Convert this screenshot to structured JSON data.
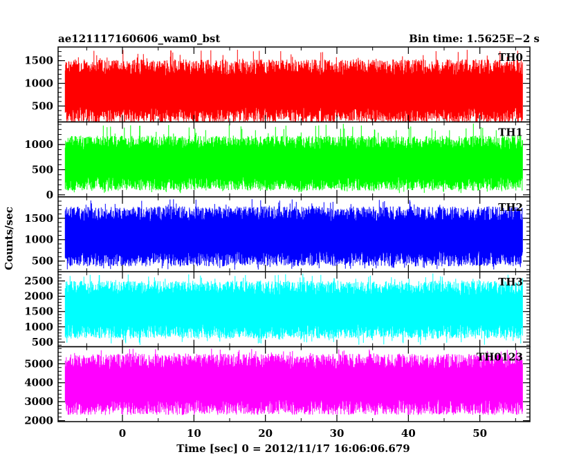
{
  "chart_data": {
    "type": "line",
    "title_left": "ae121117160606_wam0_bst",
    "title_right": "Bin time: 1.5625E−2 s",
    "xlabel": "Time [sec] 0 = 2012/11/17 16:06:06.679",
    "ylabel": "Counts/sec",
    "xlim": [
      -9,
      57
    ],
    "data_x_range": [
      -8,
      56
    ],
    "x_ticks": [
      "0",
      "10",
      "20",
      "30",
      "40",
      "50"
    ],
    "x_tick_values": [
      0,
      10,
      20,
      30,
      40,
      50
    ],
    "grid": false,
    "panels": [
      {
        "name": "TH0",
        "color": "#ff0000",
        "ylim": [
          150,
          1800
        ],
        "y_ticks": [
          500,
          1000,
          1500
        ],
        "y_tick_labels": [
          "500",
          "1000",
          "1500"
        ],
        "typical_low": 300,
        "typical_high": 1300,
        "range_min": 150,
        "range_max": 1750
      },
      {
        "name": "TH1",
        "color": "#00ff00",
        "ylim": [
          -40,
          1450
        ],
        "y_ticks": [
          0,
          500,
          1000
        ],
        "y_tick_labels": [
          "0",
          "500",
          "1000"
        ],
        "typical_low": 220,
        "typical_high": 1000,
        "range_min": 30,
        "range_max": 1420
      },
      {
        "name": "TH2",
        "color": "#0000ff",
        "ylim": [
          250,
          2000
        ],
        "y_ticks": [
          500,
          1000,
          1500
        ],
        "y_tick_labels": [
          "500",
          "1000",
          "1500"
        ],
        "typical_low": 550,
        "typical_high": 1550,
        "range_min": 300,
        "range_max": 1950
      },
      {
        "name": "TH3",
        "color": "#00ffff",
        "ylim": [
          350,
          2800
        ],
        "y_ticks": [
          500,
          1000,
          1500,
          2000,
          2500
        ],
        "y_tick_labels": [
          "500",
          "1000",
          "1500",
          "2000",
          "2500"
        ],
        "typical_low": 850,
        "typical_high": 2200,
        "range_min": 400,
        "range_max": 2750
      },
      {
        "name": "TH0123",
        "color": "#ff00ff",
        "ylim": [
          1950,
          5900
        ],
        "y_ticks": [
          2000,
          3000,
          4000,
          5000
        ],
        "y_tick_labels": [
          "2000",
          "3000",
          "4000",
          "5000"
        ],
        "typical_low": 2700,
        "typical_high": 5000,
        "range_min": 2300,
        "range_max": 5800
      }
    ]
  }
}
